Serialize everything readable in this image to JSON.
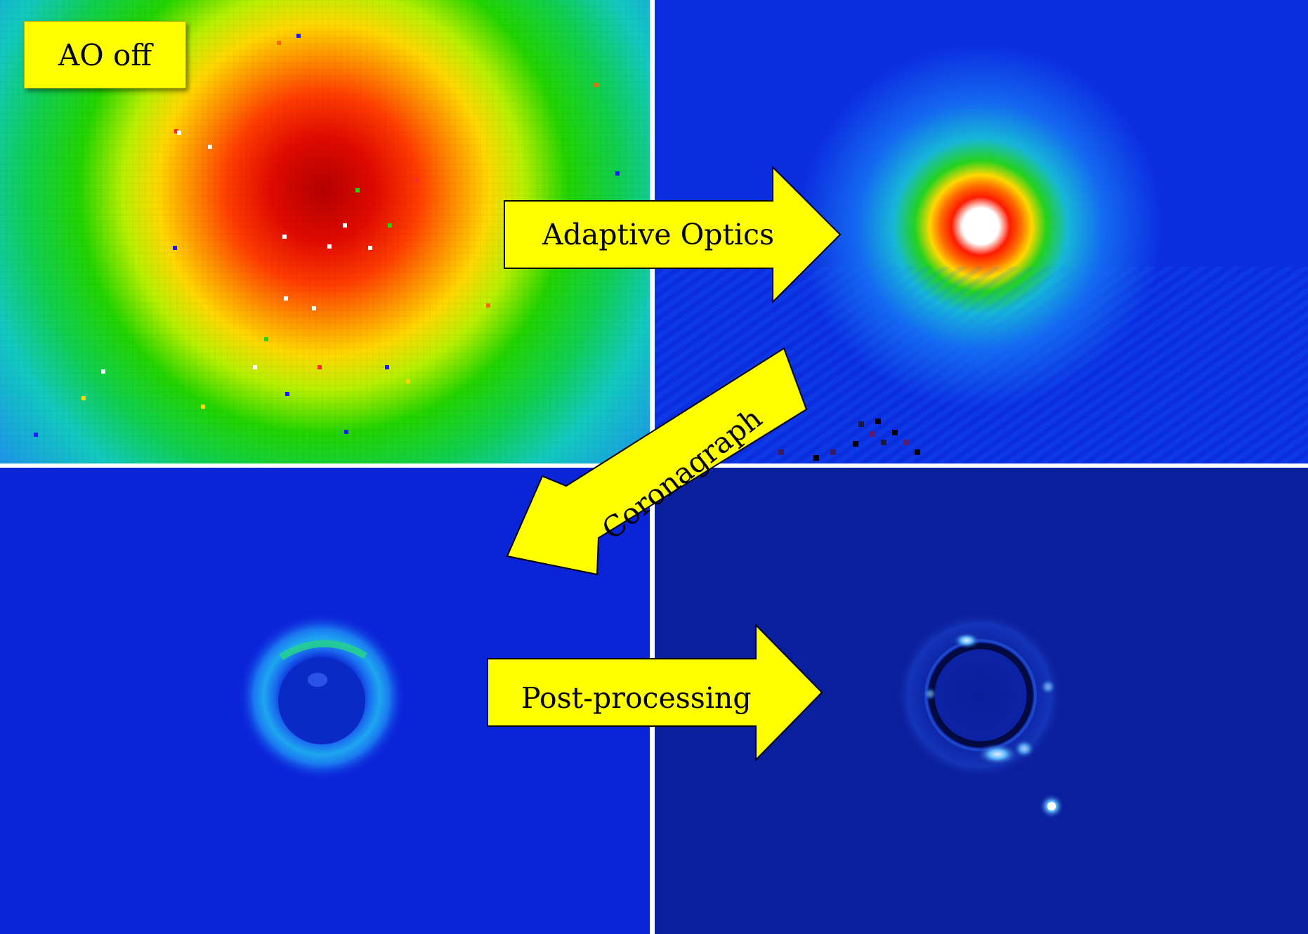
{
  "panels": [
    {
      "id": "ao-off",
      "caption": "AO off"
    },
    {
      "id": "ao-on"
    },
    {
      "id": "coronagraph"
    },
    {
      "id": "post-processed"
    }
  ],
  "arrows": {
    "adaptive_optics": "Adaptive Optics",
    "coronagraph": "Coronagraph",
    "post_processing": "Post-processing"
  },
  "colors": {
    "label_fill": "#ffff00",
    "divider": "#ffffff",
    "background_blue": "#0a21d6",
    "dark_blue": "#08189e"
  }
}
